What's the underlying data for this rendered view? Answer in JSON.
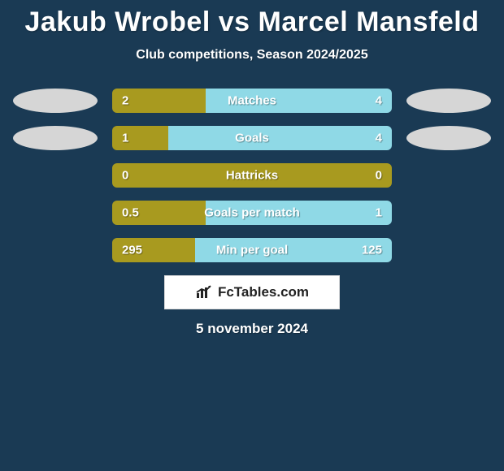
{
  "title": "Jakub Wrobel vs Marcel Mansfeld",
  "subtitle": "Club competitions, Season 2024/2025",
  "date": "5 november 2024",
  "colors": {
    "left": "#a89a1f",
    "right": "#8fd9e6",
    "ellipse": "#d6d6d6",
    "background": "#1a3a54"
  },
  "brand": {
    "label": "FcTables.com"
  },
  "rows": [
    {
      "name": "Matches",
      "left_val": "2",
      "right_val": "4",
      "left_raw": 2,
      "right_raw": 4,
      "show_ellipses": true
    },
    {
      "name": "Goals",
      "left_val": "1",
      "right_val": "4",
      "left_raw": 1,
      "right_raw": 4,
      "show_ellipses": true
    },
    {
      "name": "Hattricks",
      "left_val": "0",
      "right_val": "0",
      "left_raw": 0,
      "right_raw": 0,
      "show_ellipses": false
    },
    {
      "name": "Goals per match",
      "left_val": "0.5",
      "right_val": "1",
      "left_raw": 0.5,
      "right_raw": 1,
      "show_ellipses": false
    },
    {
      "name": "Min per goal",
      "left_val": "295",
      "right_val": "125",
      "left_raw": 295,
      "right_raw": 125,
      "show_ellipses": false,
      "invert": true
    }
  ]
}
